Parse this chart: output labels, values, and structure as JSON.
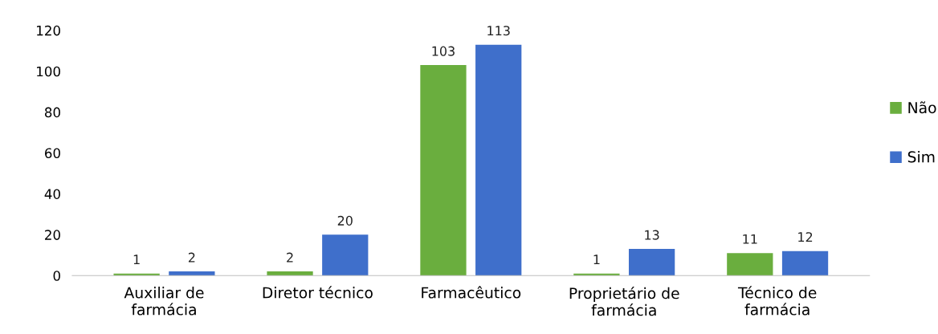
{
  "chart_data": {
    "type": "bar",
    "categories": [
      "Auxiliar de\nfarmácia",
      "Diretor técnico",
      "Farmacêutico",
      "Proprietário de\nfarmácia",
      "Técnico de\nfarmácia"
    ],
    "series": [
      {
        "name": "Não",
        "color": "#6aae3e",
        "values": [
          1,
          2,
          103,
          1,
          11
        ]
      },
      {
        "name": "Sim",
        "color": "#3f6fcb",
        "values": [
          2,
          20,
          113,
          13,
          12
        ]
      }
    ],
    "ylim": [
      0,
      120
    ],
    "yticks": [
      0,
      20,
      40,
      60,
      80,
      100,
      120
    ],
    "data_labels": true,
    "grid": false,
    "legend": "right"
  }
}
